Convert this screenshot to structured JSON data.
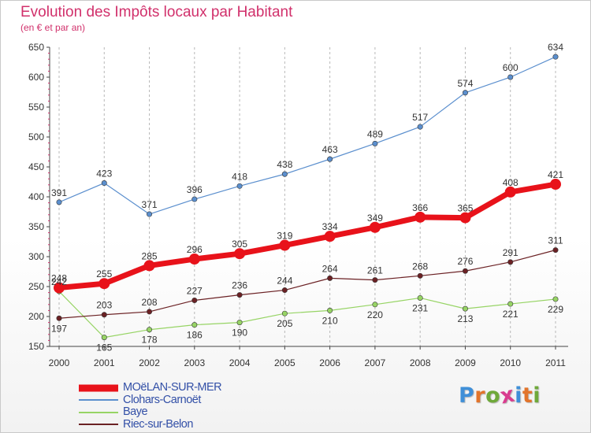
{
  "header": {
    "title": "Evolution des Impôts locaux par Habitant",
    "subtitle": "(en € et par an)"
  },
  "logo": {
    "text": "Proxiti",
    "letter_colors": [
      "#3f8fd8",
      "#e2742b",
      "#6fa93a",
      "#d93c8f",
      "#3f8fd8",
      "#e2742b",
      "#6fa93a"
    ]
  },
  "chart_data": {
    "type": "line",
    "x": [
      "2000",
      "2001",
      "2002",
      "2003",
      "2004",
      "2005",
      "2006",
      "2007",
      "2008",
      "2009",
      "2010",
      "2011"
    ],
    "ylim": [
      150,
      650
    ],
    "yticks": [
      150,
      200,
      250,
      300,
      350,
      400,
      450,
      500,
      550,
      600,
      650
    ],
    "grid": "vertical dashed",
    "legend_position": "bottom-left",
    "series": [
      {
        "name": "MOëLAN-SUR-MER",
        "values": [
          248,
          255,
          285,
          296,
          305,
          319,
          334,
          349,
          366,
          365,
          408,
          421
        ],
        "color": "#e8121a",
        "line_width": 7,
        "marker_size": 7
      },
      {
        "name": "Clohars-Carnoët",
        "values": [
          391,
          423,
          371,
          396,
          418,
          438,
          463,
          489,
          517,
          574,
          600,
          634
        ],
        "color": "#5b8fce",
        "line_width": 1.2,
        "marker_size": 3.2
      },
      {
        "name": "Baye",
        "values": [
          242,
          165,
          178,
          186,
          190,
          205,
          210,
          220,
          231,
          213,
          221,
          229
        ],
        "color": "#97d465",
        "line_width": 1.2,
        "marker_size": 3.2
      },
      {
        "name": "Riec-sur-Belon",
        "values": [
          197,
          203,
          208,
          227,
          236,
          244,
          264,
          261,
          268,
          276,
          291,
          311
        ],
        "color": "#6b2124",
        "line_width": 1.2,
        "marker_size": 3.2
      }
    ]
  }
}
